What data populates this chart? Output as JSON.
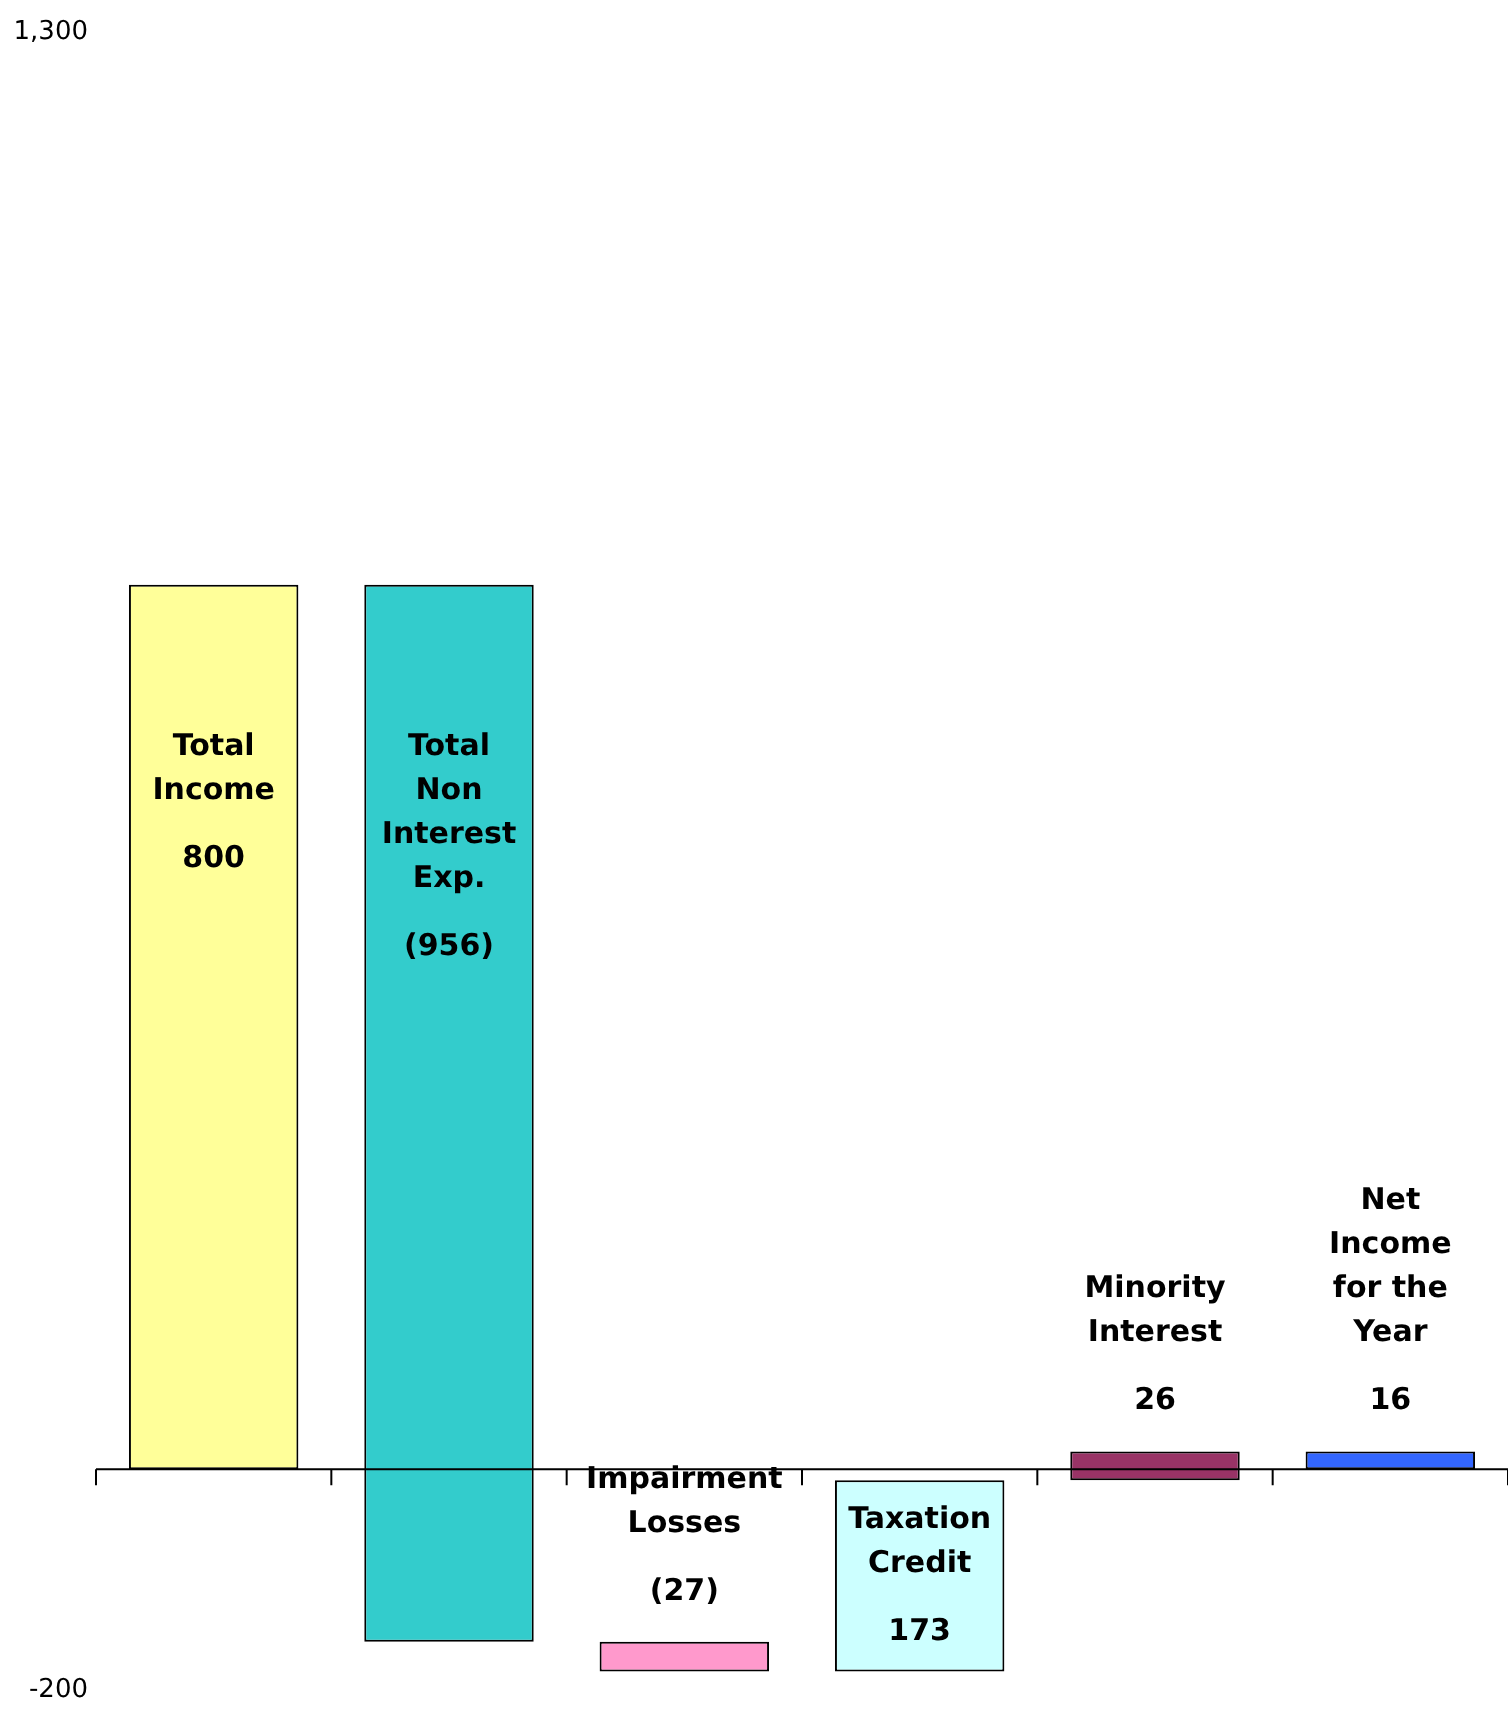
{
  "chart_data": {
    "type": "bar",
    "categories": [
      "Total Income",
      "Total Non Interest Exp.",
      "Impairment Losses",
      "Taxation Credit",
      "Minority Interest",
      "Net Income for the Year"
    ],
    "values": [
      800,
      -956,
      -27,
      173,
      26,
      16
    ],
    "base": [
      0,
      800,
      -156,
      -183,
      -10,
      0
    ],
    "colors": [
      "#ffff99",
      "#33cccc",
      "#ff99cc",
      "#ccffff",
      "#993366",
      "#3366ff"
    ],
    "value_labels": [
      "800",
      "(956)",
      "(27)",
      "173",
      "26",
      "16"
    ],
    "ylim": [
      -200,
      1300
    ],
    "yticks": [
      {
        "value": -200,
        "label": "-200"
      },
      {
        "value": 1300,
        "label": "1,300"
      }
    ],
    "grid": false,
    "legend": false
  }
}
